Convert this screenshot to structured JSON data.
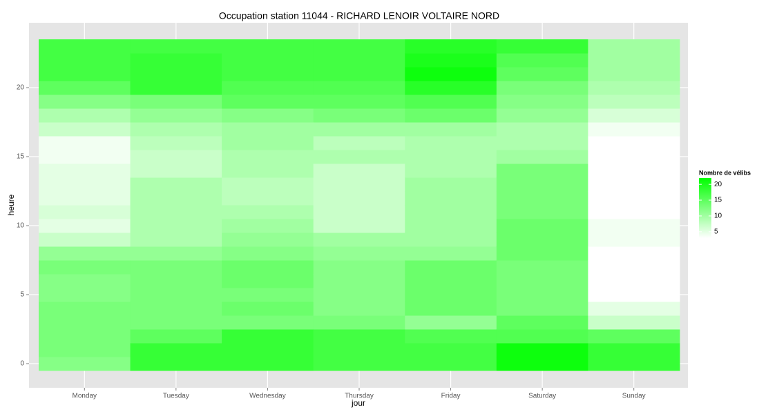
{
  "chart_data": {
    "type": "heatmap",
    "title": "Occupation station 11044 - RICHARD LENOIR VOLTAIRE NORD",
    "xlabel": "jour",
    "ylabel": "heure",
    "categories": [
      "Monday",
      "Tuesday",
      "Wednesday",
      "Thursday",
      "Friday",
      "Saturday",
      "Sunday"
    ],
    "y": [
      0,
      1,
      2,
      3,
      4,
      5,
      6,
      7,
      8,
      9,
      10,
      11,
      12,
      13,
      14,
      15,
      16,
      17,
      18,
      19,
      20,
      21,
      22,
      23
    ],
    "values": [
      [
        12,
        13,
        13,
        13,
        13,
        12,
        12,
        13,
        11,
        7,
        5,
        6,
        5,
        5,
        5,
        4,
        4,
        7,
        9,
        12,
        15,
        17,
        17,
        17
      ],
      [
        18,
        18,
        15,
        13,
        13,
        13,
        13,
        13,
        11,
        9,
        9,
        9,
        9,
        9,
        7,
        7,
        8,
        9,
        11,
        13,
        18,
        18,
        18,
        17
      ],
      [
        18,
        18,
        18,
        13,
        14,
        13,
        14,
        14,
        12,
        11,
        10,
        9,
        8,
        8,
        9,
        9,
        10,
        10,
        12,
        15,
        16,
        17,
        17,
        17
      ],
      [
        17,
        17,
        17,
        13,
        12,
        12,
        12,
        12,
        11,
        10,
        7,
        7,
        7,
        7,
        7,
        9,
        8,
        10,
        13,
        15,
        16,
        17,
        17,
        17
      ],
      [
        17,
        17,
        16,
        11,
        14,
        14,
        14,
        14,
        11,
        10,
        10,
        10,
        10,
        10,
        9,
        9,
        9,
        10,
        14,
        16,
        19,
        21,
        20,
        19
      ],
      [
        21,
        21,
        16,
        15,
        13,
        13,
        13,
        13,
        14,
        14,
        14,
        13,
        13,
        13,
        13,
        10,
        9,
        9,
        11,
        12,
        13,
        15,
        16,
        18
      ],
      [
        18,
        18,
        15,
        7,
        5,
        3,
        3,
        3,
        3,
        4,
        4,
        3,
        3,
        3,
        3,
        3,
        3,
        4,
        6,
        8,
        9,
        10,
        10,
        10
      ]
    ],
    "ylim": [
      -0.5,
      23.5
    ],
    "yticks": [
      0,
      5,
      10,
      15,
      20
    ],
    "grid": true,
    "colorscale": {
      "low": "#ffffff",
      "high": "#00ff00",
      "lim": [
        3,
        22
      ],
      "ticks": [
        5,
        10,
        15,
        20
      ]
    },
    "legend_title": "Nombre de vélibs"
  }
}
